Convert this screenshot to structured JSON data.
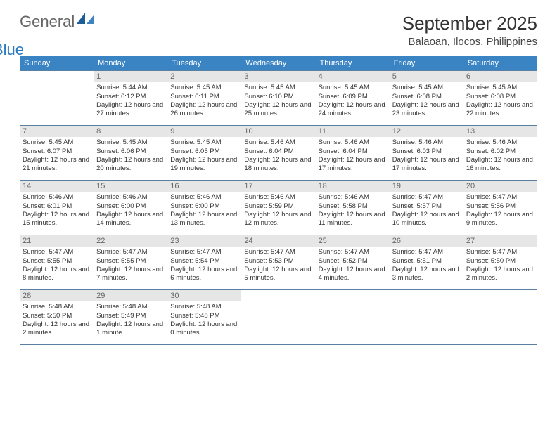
{
  "brand": {
    "part1": "General",
    "part2": "Blue"
  },
  "title": "September 2025",
  "location": "Balaoan, Ilocos, Philippines",
  "colors": {
    "header_bg": "#3b84c4",
    "header_fg": "#ffffff",
    "daynum_bg": "#e6e6e6",
    "border": "#5a7fa0",
    "brand_blue": "#2b7bbf"
  },
  "weekdays": [
    "Sunday",
    "Monday",
    "Tuesday",
    "Wednesday",
    "Thursday",
    "Friday",
    "Saturday"
  ],
  "weeks": [
    [
      null,
      {
        "n": "1",
        "sr": "5:44 AM",
        "ss": "6:12 PM",
        "dl": "12 hours and 27 minutes."
      },
      {
        "n": "2",
        "sr": "5:45 AM",
        "ss": "6:11 PM",
        "dl": "12 hours and 26 minutes."
      },
      {
        "n": "3",
        "sr": "5:45 AM",
        "ss": "6:10 PM",
        "dl": "12 hours and 25 minutes."
      },
      {
        "n": "4",
        "sr": "5:45 AM",
        "ss": "6:09 PM",
        "dl": "12 hours and 24 minutes."
      },
      {
        "n": "5",
        "sr": "5:45 AM",
        "ss": "6:08 PM",
        "dl": "12 hours and 23 minutes."
      },
      {
        "n": "6",
        "sr": "5:45 AM",
        "ss": "6:08 PM",
        "dl": "12 hours and 22 minutes."
      }
    ],
    [
      {
        "n": "7",
        "sr": "5:45 AM",
        "ss": "6:07 PM",
        "dl": "12 hours and 21 minutes."
      },
      {
        "n": "8",
        "sr": "5:45 AM",
        "ss": "6:06 PM",
        "dl": "12 hours and 20 minutes."
      },
      {
        "n": "9",
        "sr": "5:45 AM",
        "ss": "6:05 PM",
        "dl": "12 hours and 19 minutes."
      },
      {
        "n": "10",
        "sr": "5:46 AM",
        "ss": "6:04 PM",
        "dl": "12 hours and 18 minutes."
      },
      {
        "n": "11",
        "sr": "5:46 AM",
        "ss": "6:04 PM",
        "dl": "12 hours and 17 minutes."
      },
      {
        "n": "12",
        "sr": "5:46 AM",
        "ss": "6:03 PM",
        "dl": "12 hours and 17 minutes."
      },
      {
        "n": "13",
        "sr": "5:46 AM",
        "ss": "6:02 PM",
        "dl": "12 hours and 16 minutes."
      }
    ],
    [
      {
        "n": "14",
        "sr": "5:46 AM",
        "ss": "6:01 PM",
        "dl": "12 hours and 15 minutes."
      },
      {
        "n": "15",
        "sr": "5:46 AM",
        "ss": "6:00 PM",
        "dl": "12 hours and 14 minutes."
      },
      {
        "n": "16",
        "sr": "5:46 AM",
        "ss": "6:00 PM",
        "dl": "12 hours and 13 minutes."
      },
      {
        "n": "17",
        "sr": "5:46 AM",
        "ss": "5:59 PM",
        "dl": "12 hours and 12 minutes."
      },
      {
        "n": "18",
        "sr": "5:46 AM",
        "ss": "5:58 PM",
        "dl": "12 hours and 11 minutes."
      },
      {
        "n": "19",
        "sr": "5:47 AM",
        "ss": "5:57 PM",
        "dl": "12 hours and 10 minutes."
      },
      {
        "n": "20",
        "sr": "5:47 AM",
        "ss": "5:56 PM",
        "dl": "12 hours and 9 minutes."
      }
    ],
    [
      {
        "n": "21",
        "sr": "5:47 AM",
        "ss": "5:55 PM",
        "dl": "12 hours and 8 minutes."
      },
      {
        "n": "22",
        "sr": "5:47 AM",
        "ss": "5:55 PM",
        "dl": "12 hours and 7 minutes."
      },
      {
        "n": "23",
        "sr": "5:47 AM",
        "ss": "5:54 PM",
        "dl": "12 hours and 6 minutes."
      },
      {
        "n": "24",
        "sr": "5:47 AM",
        "ss": "5:53 PM",
        "dl": "12 hours and 5 minutes."
      },
      {
        "n": "25",
        "sr": "5:47 AM",
        "ss": "5:52 PM",
        "dl": "12 hours and 4 minutes."
      },
      {
        "n": "26",
        "sr": "5:47 AM",
        "ss": "5:51 PM",
        "dl": "12 hours and 3 minutes."
      },
      {
        "n": "27",
        "sr": "5:47 AM",
        "ss": "5:50 PM",
        "dl": "12 hours and 2 minutes."
      }
    ],
    [
      {
        "n": "28",
        "sr": "5:48 AM",
        "ss": "5:50 PM",
        "dl": "12 hours and 2 minutes."
      },
      {
        "n": "29",
        "sr": "5:48 AM",
        "ss": "5:49 PM",
        "dl": "12 hours and 1 minute."
      },
      {
        "n": "30",
        "sr": "5:48 AM",
        "ss": "5:48 PM",
        "dl": "12 hours and 0 minutes."
      },
      null,
      null,
      null,
      null
    ]
  ],
  "labels": {
    "sunrise": "Sunrise:",
    "sunset": "Sunset:",
    "daylight": "Daylight:"
  }
}
